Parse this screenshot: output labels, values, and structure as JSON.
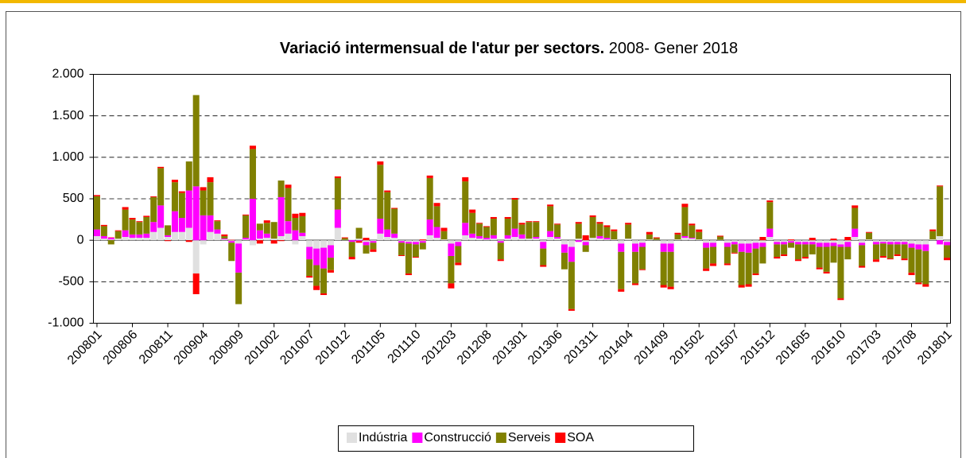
{
  "chart_data": {
    "type": "stacked_bar",
    "title": "Variació intermensual de l'atur per sectors.",
    "subtitle": "2008- Gener 2018",
    "categories": [
      "200801",
      null,
      null,
      null,
      null,
      "200806",
      null,
      null,
      null,
      null,
      "200811",
      null,
      null,
      null,
      null,
      "200904",
      null,
      null,
      null,
      null,
      "200909",
      null,
      null,
      null,
      null,
      "201002",
      null,
      null,
      null,
      null,
      "201007",
      null,
      null,
      null,
      null,
      "201012",
      null,
      null,
      null,
      null,
      "201105",
      null,
      null,
      null,
      null,
      "201110",
      null,
      null,
      null,
      null,
      "201203",
      null,
      null,
      null,
      null,
      "201208",
      null,
      null,
      null,
      null,
      "201301",
      null,
      null,
      null,
      null,
      "201306",
      null,
      null,
      null,
      null,
      "201311",
      null,
      null,
      null,
      null,
      "201404",
      null,
      null,
      null,
      null,
      "201409",
      null,
      null,
      null,
      null,
      "201502",
      null,
      null,
      null,
      null,
      "201507",
      null,
      null,
      null,
      null,
      "201512",
      null,
      null,
      null,
      null,
      "201605",
      null,
      null,
      null,
      null,
      "201610",
      null,
      null,
      null,
      null,
      "201703",
      null,
      null,
      null,
      null,
      "201708",
      null,
      null,
      null,
      null,
      "201801"
    ],
    "series": [
      {
        "name": "Indústria",
        "color": "#e0e0e0",
        "values": [
          50,
          20,
          10,
          20,
          40,
          30,
          30,
          30,
          100,
          150,
          40,
          100,
          100,
          150,
          -400,
          -50,
          100,
          80,
          10,
          -10,
          -40,
          10,
          -60,
          20,
          30,
          20,
          50,
          80,
          -50,
          50,
          -80,
          -100,
          -90,
          -60,
          150,
          5,
          10,
          20,
          -20,
          -10,
          80,
          40,
          30,
          -10,
          -20,
          -20,
          -10,
          60,
          30,
          10,
          -40,
          -20,
          60,
          30,
          20,
          10,
          20,
          -10,
          20,
          40,
          20,
          20,
          20,
          -20,
          40,
          20,
          -50,
          -80,
          20,
          -20,
          30,
          20,
          10,
          10,
          -40,
          20,
          -40,
          -30,
          10,
          5,
          -40,
          -40,
          10,
          30,
          20,
          10,
          -30,
          -30,
          5,
          -30,
          -20,
          -40,
          -40,
          -30,
          -30,
          40,
          -20,
          -20,
          -10,
          -20,
          -20,
          -20,
          -30,
          -30,
          -30,
          -50,
          -20,
          40,
          -30,
          10,
          -20,
          -20,
          -20,
          -20,
          -20,
          -40,
          -50,
          -50,
          10,
          50,
          -20
        ]
      },
      {
        "name": "Construcció",
        "color": "#ff00ff",
        "values": [
          80,
          30,
          20,
          0,
          80,
          40,
          40,
          50,
          120,
          270,
          20,
          250,
          170,
          450,
          650,
          300,
          200,
          50,
          10,
          -20,
          -350,
          20,
          500,
          100,
          50,
          0,
          470,
          150,
          120,
          40,
          -150,
          -200,
          -250,
          -150,
          220,
          0,
          -20,
          -10,
          -40,
          -20,
          180,
          90,
          50,
          -20,
          -20,
          -30,
          -20,
          190,
          130,
          0,
          -150,
          -50,
          150,
          50,
          30,
          20,
          40,
          -20,
          40,
          100,
          50,
          0,
          20,
          -80,
          70,
          20,
          -100,
          -180,
          -20,
          -40,
          0,
          30,
          20,
          0,
          -100,
          0,
          -100,
          -50,
          0,
          0,
          -100,
          -100,
          0,
          20,
          10,
          0,
          -60,
          -50,
          0,
          -50,
          -30,
          -100,
          -110,
          -70,
          -50,
          100,
          -30,
          -30,
          -20,
          -30,
          -30,
          -30,
          -50,
          -50,
          -40,
          -30,
          -60,
          100,
          -30,
          0,
          -30,
          -20,
          -30,
          -30,
          -30,
          -50,
          -60,
          -80,
          0,
          -50,
          -40
        ]
      },
      {
        "name": "Serveis",
        "color": "#808000",
        "values": [
          400,
          120,
          -50,
          90,
          250,
          180,
          150,
          200,
          300,
          450,
          120,
          350,
          300,
          350,
          1100,
          300,
          400,
          100,
          30,
          -220,
          -380,
          270,
          600,
          80,
          130,
          200,
          200,
          400,
          150,
          200,
          -200,
          -250,
          -300,
          -150,
          380,
          20,
          -180,
          130,
          -100,
          -80,
          650,
          450,
          300,
          -150,
          -360,
          -150,
          -80,
          500,
          250,
          100,
          -330,
          -200,
          500,
          250,
          150,
          130,
          200,
          -200,
          200,
          350,
          120,
          200,
          180,
          -200,
          300,
          150,
          -200,
          -570,
          180,
          -80,
          250,
          150,
          130,
          100,
          -450,
          170,
          -380,
          -270,
          60,
          20,
          -400,
          -420,
          60,
          350,
          150,
          90,
          -250,
          -200,
          40,
          -200,
          -100,
          -400,
          -380,
          -300,
          -200,
          320,
          -150,
          -120,
          -60,
          -180,
          -150,
          -120,
          -250,
          -300,
          -200,
          -620,
          -150,
          250,
          -250,
          80,
          -180,
          -150,
          -170,
          -120,
          -170,
          -300,
          -400,
          -400,
          100,
          600,
          -150
        ]
      },
      {
        "name": "SOA",
        "color": "#ff0000",
        "values": [
          15,
          15,
          5,
          10,
          30,
          20,
          10,
          15,
          10,
          15,
          -10,
          30,
          20,
          -20,
          -250,
          40,
          60,
          10,
          20,
          5,
          0,
          10,
          40,
          -40,
          30,
          -40,
          -10,
          40,
          50,
          40,
          -20,
          -50,
          -20,
          -30,
          20,
          10,
          -30,
          -20,
          30,
          -30,
          40,
          20,
          10,
          -10,
          -20,
          -10,
          10,
          30,
          40,
          40,
          -60,
          -30,
          50,
          40,
          10,
          10,
          20,
          -20,
          20,
          20,
          20,
          10,
          10,
          -20,
          20,
          10,
          0,
          -20,
          20,
          60,
          20,
          20,
          20,
          20,
          -30,
          20,
          -20,
          -10,
          30,
          10,
          -30,
          -30,
          20,
          40,
          20,
          30,
          -30,
          -30,
          10,
          -20,
          -10,
          -30,
          -30,
          -20,
          40,
          20,
          -20,
          -20,
          10,
          -20,
          -20,
          30,
          -20,
          -20,
          20,
          -20,
          40,
          30,
          -20,
          10,
          -30,
          -20,
          -10,
          -20,
          -20,
          -30,
          -20,
          -30,
          20,
          10,
          -30
        ]
      }
    ],
    "ylim": [
      -1000,
      2000
    ],
    "yticks": [
      {
        "value": 2000,
        "label": "2.000"
      },
      {
        "value": 1500,
        "label": "1.500"
      },
      {
        "value": 1000,
        "label": "1.000"
      },
      500,
      0,
      -500,
      {
        "value": -1000,
        "label": "-1.000"
      }
    ],
    "grid": true,
    "legend": "bottom"
  }
}
